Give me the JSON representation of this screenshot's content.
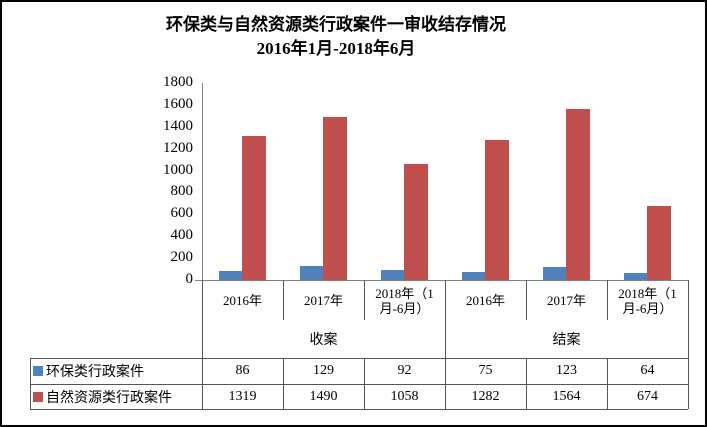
{
  "window": {
    "background": "#ffffff",
    "border_color": "#000000"
  },
  "title": {
    "line1": "环保类与自然资源类行政案件一审收结存情况",
    "line2": "2016年1月-2018年6月"
  },
  "chart_data": {
    "type": "bar",
    "title": "环保类与自然资源类行政案件一审收结存情况",
    "subtitle": "2016年1月-2018年6月",
    "categories": [
      "2016年",
      "2017年",
      "2018年（1月-6月）",
      "2016年",
      "2017年",
      "2018年（1月-6月）"
    ],
    "category_groups": [
      {
        "label": "收案",
        "span": 3
      },
      {
        "label": "结案",
        "span": 3
      }
    ],
    "series": [
      {
        "name": "环保类行政案件",
        "color": "#4F81BD",
        "values": [
          86,
          129,
          92,
          75,
          123,
          64
        ]
      },
      {
        "name": "自然资源类行政案件",
        "color": "#C0504D",
        "values": [
          1319,
          1490,
          1058,
          1282,
          1564,
          674
        ]
      }
    ],
    "ylim": [
      0,
      1800
    ],
    "ytick_step": 200,
    "ytick_labels": [
      "0",
      "200",
      "400",
      "600",
      "800",
      "1000",
      "1200",
      "1400",
      "1600",
      "1800"
    ],
    "grid": false,
    "legend_position": "bottom-data-table",
    "axis_color": "#808080",
    "table_line_color": "#555555"
  }
}
